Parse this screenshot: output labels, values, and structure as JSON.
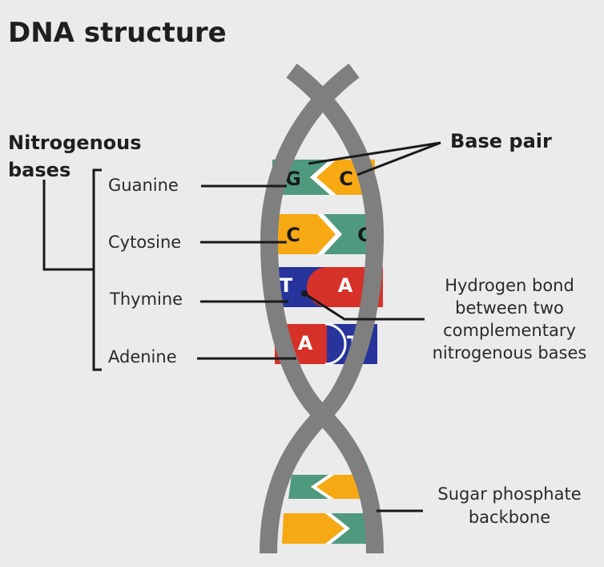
{
  "title": "DNA structure",
  "nitrogenous_bases": {
    "heading_line1": "Nitrogenous",
    "heading_line2": "bases",
    "items": [
      "Guanine",
      "Cytosine",
      "Thymine",
      "Adenine"
    ]
  },
  "base_pair_label": "Base pair",
  "hydrogen_bond_label": [
    "Hydrogen bond",
    "between two",
    "complementary",
    "nitrogenous bases"
  ],
  "backbone_label": [
    "Sugar phosphate",
    "backbone"
  ],
  "base_letters": {
    "row1": [
      "G",
      "C"
    ],
    "row2": [
      "C",
      "G"
    ],
    "row3": [
      "T",
      "A"
    ],
    "row4": [
      "A",
      "T"
    ]
  },
  "colors": {
    "guanine": "#4f9a7f",
    "cytosine": "#f7a913",
    "thymine": "#26349b",
    "adenine": "#d63128",
    "backbone": "#7f7f7f",
    "background": "#ebebeb"
  }
}
